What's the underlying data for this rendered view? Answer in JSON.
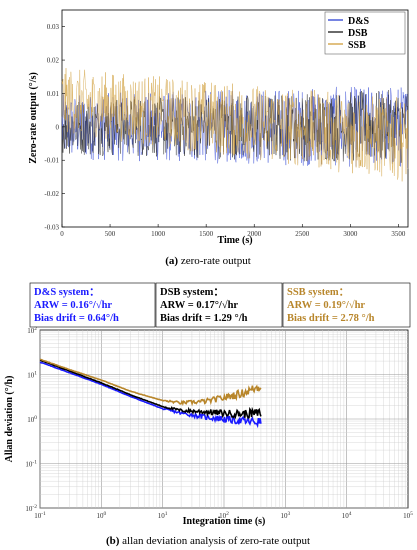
{
  "chart_data": [
    {
      "type": "line",
      "caption_label": "(a)",
      "caption_text": " zero-rate output",
      "xlabel": "Time (s)",
      "ylabel": "Zero-rate output (°/s)",
      "xlim": [
        0,
        3600
      ],
      "ylim": [
        -0.03,
        0.035
      ],
      "x_ticks": [
        "0",
        "500",
        "1000",
        "1500",
        "2000",
        "2500",
        "3000",
        "3500"
      ],
      "y_ticks": [
        "-0.03",
        "-0.02",
        "-0.01",
        "0",
        "0.01",
        "0.02",
        "0.03"
      ],
      "legend_position": "top-right",
      "series": [
        {
          "name": "D&S",
          "color": "#3b4fd6",
          "center": [
            0.0,
            0.0
          ],
          "spread": [
            0.007,
            0.009
          ]
        },
        {
          "name": "DSB",
          "color": "#2a2a2a",
          "center": [
            0.0,
            0.0
          ],
          "spread": [
            0.006,
            0.008
          ]
        },
        {
          "name": "SSB",
          "color": "#d4a64a",
          "center": [
            0.008,
            -0.004
          ],
          "spread": [
            0.007,
            0.009
          ]
        }
      ]
    },
    {
      "type": "line",
      "scale": "log-log",
      "caption_label": "(b)",
      "caption_text": " allan deviation analysis of zero-rate output",
      "xlabel": "Integration time (s)",
      "ylabel": "Allan deviation (°/h)",
      "xlim": [
        0.1,
        100000
      ],
      "ylim": [
        0.01,
        100
      ],
      "x_ticks": [
        "10^-1",
        "10^0",
        "10^1",
        "10^2",
        "10^3",
        "10^4",
        "10^5"
      ],
      "y_ticks": [
        "10^-2",
        "10^-1",
        "10^0",
        "10^1",
        "10^2"
      ],
      "grid": true,
      "series": [
        {
          "name": "D&S",
          "color": "#1a1aff",
          "x": [
            0.1,
            0.3,
            1,
            3,
            10,
            20,
            50,
            100,
            200,
            400
          ],
          "y": [
            19,
            11,
            6,
            3.2,
            1.7,
            1.35,
            1.1,
            1.0,
            0.9,
            0.85
          ]
        },
        {
          "name": "DSB",
          "color": "#000000",
          "x": [
            0.1,
            0.3,
            1,
            3,
            10,
            20,
            50,
            100,
            200,
            400
          ],
          "y": [
            21,
            12,
            6.5,
            3.5,
            1.9,
            1.55,
            1.45,
            1.35,
            1.3,
            1.35
          ]
        },
        {
          "name": "SSB",
          "color": "#b8862b",
          "x": [
            0.1,
            0.3,
            1,
            3,
            10,
            20,
            50,
            100,
            200,
            400
          ],
          "y": [
            22,
            13,
            7.5,
            4.2,
            2.6,
            2.3,
            2.5,
            3.0,
            3.8,
            5.5
          ]
        }
      ],
      "annotations": [
        {
          "title": "D&S system：",
          "arw": "ARW = 0.16°/√hr",
          "bias": "Bias drift = 0.64°/h",
          "color": "#1a1aff"
        },
        {
          "title": "DSB system：",
          "arw": "ARW = 0.17°/√hr",
          "bias": "Bias drift = 1.29 °/h",
          "color": "#000000"
        },
        {
          "title": "SSB system：",
          "arw": "ARW = 0.19°/√hr",
          "bias": "Bias drift = 2.78 °/h",
          "color": "#b8862b"
        }
      ]
    }
  ]
}
